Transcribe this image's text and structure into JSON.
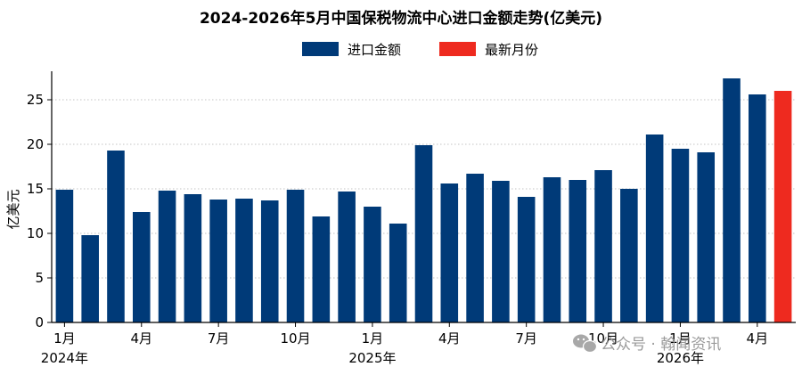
{
  "chart_data": {
    "type": "bar",
    "title": "2024-2026年5月中国保税物流中心进口金额走势(亿美元)",
    "ylabel": "亿美元",
    "ylim": [
      0,
      28
    ],
    "yticks": [
      0,
      5,
      10,
      15,
      20,
      25
    ],
    "grid": "horizontal-dotted",
    "legend_position": "top-center",
    "colors": {
      "series": "#003a78",
      "latest": "#ee2a1f",
      "grid": "#b0b0b0"
    },
    "series": [
      {
        "name": "进口金额"
      },
      {
        "name": "最新月份"
      }
    ],
    "categories": [
      "2024-01",
      "2024-02",
      "2024-03",
      "2024-04",
      "2024-05",
      "2024-06",
      "2024-07",
      "2024-08",
      "2024-09",
      "2024-10",
      "2024-11",
      "2024-12",
      "2025-01",
      "2025-02",
      "2025-03",
      "2025-04",
      "2025-05",
      "2025-06",
      "2025-07",
      "2025-08",
      "2025-09",
      "2025-10",
      "2025-11",
      "2025-12",
      "2026-01",
      "2026-02",
      "2026-03",
      "2026-04",
      "2026-05"
    ],
    "values": [
      14.9,
      9.8,
      19.3,
      12.4,
      14.8,
      14.4,
      13.8,
      13.9,
      13.7,
      14.9,
      11.9,
      14.7,
      13.0,
      11.1,
      19.9,
      15.6,
      16.7,
      15.9,
      14.1,
      16.3,
      16.0,
      17.1,
      15.0,
      21.1,
      19.5,
      19.1,
      27.4,
      25.6,
      26.0
    ],
    "latest_index": 28,
    "x_tick_labels": [
      {
        "index": 0,
        "label": "1月",
        "year": "2024年"
      },
      {
        "index": 3,
        "label": "4月"
      },
      {
        "index": 6,
        "label": "7月"
      },
      {
        "index": 9,
        "label": "10月"
      },
      {
        "index": 12,
        "label": "1月",
        "year": "2025年"
      },
      {
        "index": 15,
        "label": "4月"
      },
      {
        "index": 18,
        "label": "7月"
      },
      {
        "index": 21,
        "label": "10月"
      },
      {
        "index": 24,
        "label": "1月",
        "year": "2026年"
      },
      {
        "index": 27,
        "label": "4月"
      }
    ]
  },
  "watermark": {
    "icon": "wechat-icon",
    "text": "公众号 · 翰闻资讯"
  }
}
